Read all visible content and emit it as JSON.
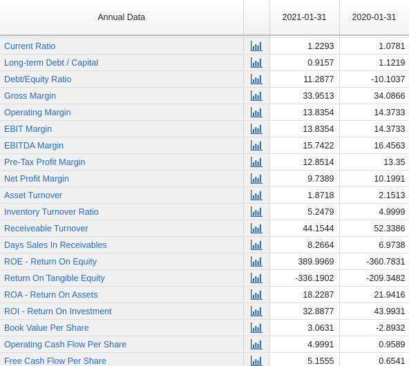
{
  "header": {
    "label": "Annual Data",
    "periods": [
      "2021-01-31",
      "2020-01-31"
    ]
  },
  "icon": "bar-chart-icon",
  "colors": {
    "link": "#2a6bb3",
    "label_bg": "#f0f0f0",
    "icon": "#2a6bb3"
  },
  "rows": [
    {
      "label": "Current Ratio",
      "v1": "1.2293",
      "v2": "1.0781"
    },
    {
      "label": "Long-term Debt / Capital",
      "v1": "0.9157",
      "v2": "1.1219"
    },
    {
      "label": "Debt/Equity Ratio",
      "v1": "11.2877",
      "v2": "-10.1037"
    },
    {
      "label": "Gross Margin",
      "v1": "33.9513",
      "v2": "34.0866"
    },
    {
      "label": "Operating Margin",
      "v1": "13.8354",
      "v2": "14.3733"
    },
    {
      "label": "EBIT Margin",
      "v1": "13.8354",
      "v2": "14.3733"
    },
    {
      "label": "EBITDA Margin",
      "v1": "15.7422",
      "v2": "16.4563"
    },
    {
      "label": "Pre-Tax Profit Margin",
      "v1": "12.8514",
      "v2": "13.35"
    },
    {
      "label": "Net Profit Margin",
      "v1": "9.7389",
      "v2": "10.1991"
    },
    {
      "label": "Asset Turnover",
      "v1": "1.8718",
      "v2": "2.1513"
    },
    {
      "label": "Inventory Turnover Ratio",
      "v1": "5.2479",
      "v2": "4.9999"
    },
    {
      "label": "Receiveable Turnover",
      "v1": "44.1544",
      "v2": "52.3386"
    },
    {
      "label": "Days Sales In Receivables",
      "v1": "8.2664",
      "v2": "6.9738"
    },
    {
      "label": "ROE - Return On Equity",
      "v1": "389.9969",
      "v2": "-360.7831"
    },
    {
      "label": "Return On Tangible Equity",
      "v1": "-336.1902",
      "v2": "-209.3482"
    },
    {
      "label": "ROA - Return On Assets",
      "v1": "18.2287",
      "v2": "21.9416"
    },
    {
      "label": "ROI - Return On Investment",
      "v1": "32.8877",
      "v2": "43.9931"
    },
    {
      "label": "Book Value Per Share",
      "v1": "3.0631",
      "v2": "-2.8932"
    },
    {
      "label": "Operating Cash Flow Per Share",
      "v1": "4.9991",
      "v2": "0.9589"
    },
    {
      "label": "Free Cash Flow Per Share",
      "v1": "5.1555",
      "v2": "0.6541"
    }
  ]
}
